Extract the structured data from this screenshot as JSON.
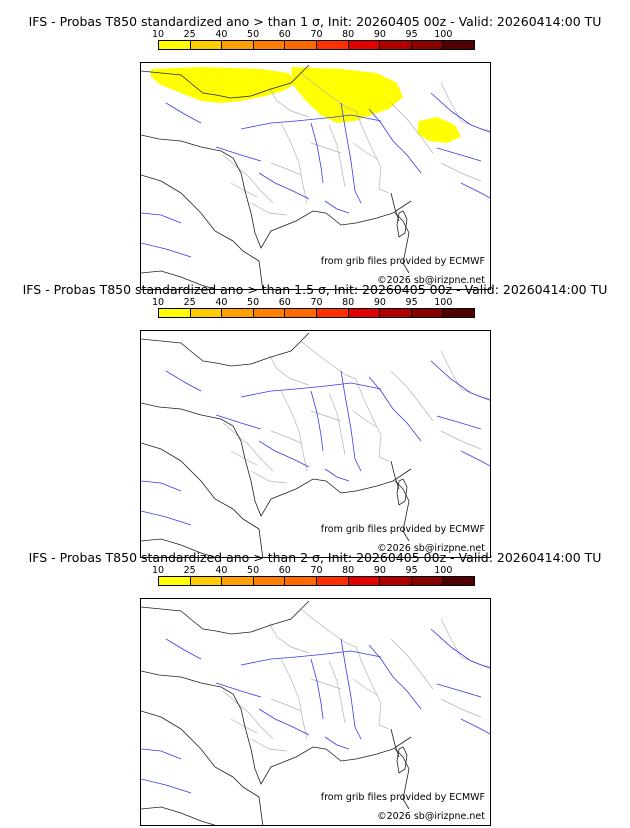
{
  "colorbar": {
    "ticks": [
      "10",
      "25",
      "40",
      "50",
      "60",
      "70",
      "80",
      "90",
      "95",
      "100"
    ],
    "colors": [
      "#ffff00",
      "#ffcc00",
      "#ff9f00",
      "#ff8000",
      "#ff6a00",
      "#ff3000",
      "#e00000",
      "#b00000",
      "#880000",
      "#500000"
    ]
  },
  "panels": [
    {
      "title": "IFS - Probas T850  standardized ano > than 1 σ, Init: 20260405 00z - Valid: 20260414:00 TU",
      "source": "from grib files provided by ECMWF",
      "copyright": "©2026 sb@irizpne.net",
      "yellow_areas": [
        "north-coast",
        "belgium-luxembourg",
        "northeast-alps"
      ]
    },
    {
      "title": "IFS - Probas T850  standardized ano > than 1.5 σ, Init: 20260405 00z - Valid: 20260414:00 TU",
      "source": "from grib files provided by ECMWF",
      "copyright": "©2026 sb@irizpne.net",
      "yellow_areas": []
    },
    {
      "title": "IFS - Probas T850  standardized ano > than 2 σ, Init: 20260405 00z - Valid: 20260414:00 TU",
      "source": "from grib files provided by ECMWF",
      "copyright": "©2026 sb@irizpne.net",
      "yellow_areas": []
    }
  ]
}
